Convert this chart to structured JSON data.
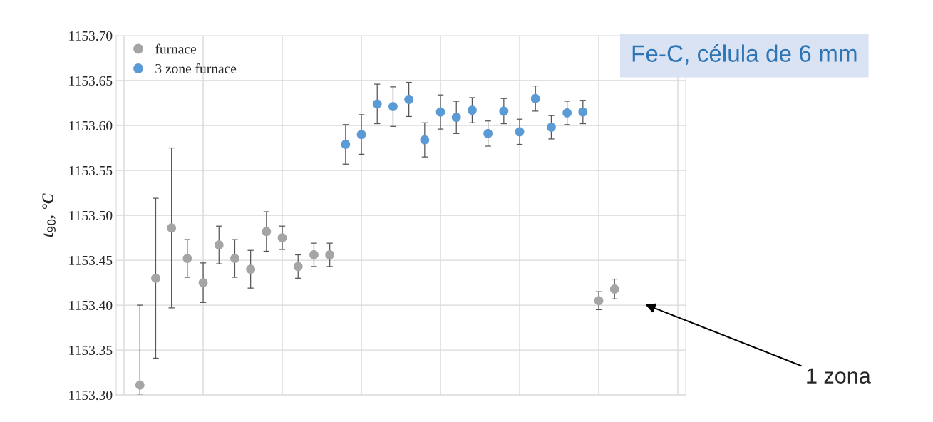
{
  "chart_data": {
    "type": "scatter",
    "ylabel": "t$_{90}$, °C",
    "categories": [
      null,
      null,
      null,
      null,
      null,
      null,
      null,
      null,
      null,
      null,
      null,
      null,
      null,
      null,
      null,
      null,
      null,
      null,
      null,
      null,
      null,
      null,
      null,
      null,
      null,
      null,
      null,
      null,
      null,
      null,
      null,
      null,
      null,
      null,
      null,
      null
    ],
    "ylim": [
      1153.3,
      1153.7
    ],
    "yticks": [
      {
        "value": 1153.3,
        "label": "1153.30"
      },
      {
        "value": 1153.35,
        "label": "1153.35"
      },
      {
        "value": 1153.4,
        "label": "1153.40"
      },
      {
        "value": 1153.45,
        "label": "1153.45"
      },
      {
        "value": 1153.5,
        "label": "1153.50"
      },
      {
        "value": 1153.55,
        "label": "1153.55"
      },
      {
        "value": 1153.6,
        "label": "1153.60"
      },
      {
        "value": 1153.65,
        "label": "1153.65"
      },
      {
        "value": 1153.7,
        "label": "1153.70"
      }
    ],
    "grid": true,
    "legend": "top left",
    "marker": "circle",
    "series": [
      {
        "name": "furnace",
        "color": "#a5a5a5",
        "values": [
          null,
          1153.311,
          1153.43,
          1153.486,
          1153.452,
          1153.425,
          1153.467,
          1153.452,
          1153.44,
          1153.482,
          1153.475,
          1153.443,
          1153.456,
          1153.456,
          null,
          null,
          null,
          null,
          null,
          null,
          null,
          null,
          null,
          null,
          null,
          null,
          null,
          null,
          null,
          null,
          1153.405,
          1153.418,
          null,
          null,
          null,
          null
        ],
        "errors": [
          null,
          [
            1153.3,
            1153.4
          ],
          0.089,
          0.089,
          0.021,
          0.022,
          0.021,
          0.021,
          0.021,
          0.022,
          0.013,
          0.013,
          0.013,
          0.013,
          null,
          null,
          null,
          null,
          null,
          null,
          null,
          null,
          null,
          null,
          null,
          null,
          null,
          null,
          null,
          null,
          0.01,
          0.011,
          null,
          null,
          null,
          null
        ]
      },
      {
        "name": "3 zone furnace",
        "color": "#5b9bd5",
        "values": [
          null,
          null,
          null,
          null,
          null,
          null,
          null,
          null,
          null,
          null,
          null,
          null,
          null,
          null,
          1153.579,
          1153.59,
          1153.624,
          1153.621,
          1153.629,
          1153.584,
          1153.615,
          1153.609,
          1153.617,
          1153.591,
          1153.616,
          1153.593,
          1153.63,
          1153.598,
          1153.614,
          1153.615,
          null,
          null,
          null,
          null,
          null,
          null
        ],
        "errors": [
          null,
          null,
          null,
          null,
          null,
          null,
          null,
          null,
          null,
          null,
          null,
          null,
          null,
          null,
          0.022,
          0.022,
          0.022,
          0.022,
          0.019,
          0.019,
          0.019,
          0.018,
          0.014,
          0.014,
          0.014,
          0.014,
          0.014,
          0.013,
          0.013,
          0.013,
          null,
          null,
          null,
          null,
          null,
          null
        ]
      }
    ],
    "annotations": [
      "Fe-C, célula de 6 mm",
      "1 zona"
    ]
  }
}
